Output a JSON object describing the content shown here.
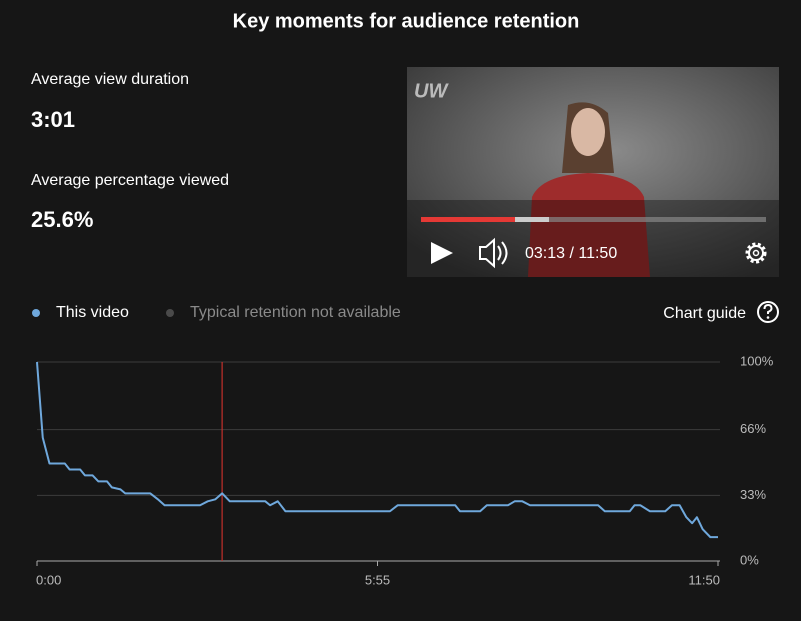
{
  "title": "Key moments for audience retention",
  "stats": [
    {
      "label": "Average view duration",
      "value": "3:01"
    },
    {
      "label": "Average percentage viewed",
      "value": "25.6%"
    }
  ],
  "player": {
    "logo": "UW",
    "time": "03:13 / 11:50"
  },
  "chart_guide": "Chart guide",
  "chart_data": {
    "type": "line",
    "x": [
      0,
      6,
      13,
      29,
      34,
      45,
      50,
      58,
      64,
      73,
      78,
      87,
      92,
      118,
      126,
      133,
      170,
      178,
      186,
      193,
      201,
      238,
      243,
      251,
      259,
      368,
      376,
      436,
      441,
      462,
      469,
      491,
      498,
      506,
      514,
      585,
      592,
      618,
      623,
      629,
      639,
      655,
      662,
      670,
      677,
      683,
      688,
      694,
      702,
      710
    ],
    "series": [
      {
        "name": "This video",
        "color": "#6fa8dc",
        "values": [
          100,
          62,
          49,
          49,
          46,
          46,
          43,
          43,
          40,
          40,
          37,
          36,
          34,
          34,
          31,
          28,
          28,
          30,
          31,
          34,
          30,
          30,
          28,
          30,
          25,
          25,
          28,
          28,
          25,
          25,
          28,
          28,
          30,
          30,
          28,
          28,
          25,
          25,
          28,
          28,
          25,
          25,
          28,
          28,
          22,
          19,
          22,
          16,
          12,
          12
        ]
      }
    ],
    "unavailable_series": {
      "name": "Typical retention not available",
      "color": "#4a4a4a"
    },
    "marker": 193,
    "marker_color": "#c4302b",
    "xlim": [
      0,
      710
    ],
    "xticks": [
      {
        "value": 0,
        "label": "0:00"
      },
      {
        "value": 355,
        "label": "5:55"
      },
      {
        "value": 710,
        "label": "11:50"
      }
    ],
    "ylim": [
      0,
      100
    ],
    "yticks": [
      {
        "value": 0,
        "label": "0%"
      },
      {
        "value": 33,
        "label": "33%"
      },
      {
        "value": 66,
        "label": "66%"
      },
      {
        "value": 100,
        "label": "100%"
      }
    ],
    "grid": true
  }
}
